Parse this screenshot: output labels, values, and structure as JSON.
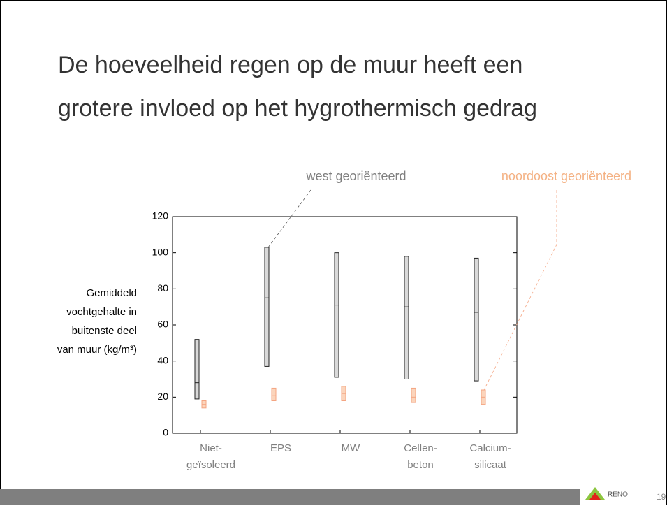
{
  "title_lines": [
    "De hoeveelheid regen op de muur heeft een",
    "grotere invloed op het hygrothermisch gedrag"
  ],
  "page_number": "19",
  "logo_text": "RENO",
  "chart_data": {
    "type": "range",
    "ylabel_lines": [
      "Gemiddeld",
      "vochtgehalte in",
      "buitenste deel",
      "van muur (kg/m³)"
    ],
    "categories": [
      [
        "Niet-",
        "geïsoleerd"
      ],
      [
        "EPS"
      ],
      [
        "MW"
      ],
      [
        "Cellen-",
        "beton"
      ],
      [
        "Calcium-",
        "silicaat"
      ]
    ],
    "ylim": [
      0,
      120
    ],
    "yticks": [
      0,
      20,
      40,
      60,
      80,
      100,
      120
    ],
    "series": [
      {
        "name": "west georiënteerd",
        "color": "#d9d9d9",
        "stroke": "#222222",
        "label_color": "#7f7f7f",
        "low": [
          19,
          37,
          31,
          30,
          29
        ],
        "median": [
          28,
          75,
          71,
          70,
          67
        ],
        "high": [
          52,
          103,
          100,
          98,
          97
        ]
      },
      {
        "name": "noordoost georiënteerd",
        "color": "#fbd5bc",
        "stroke": "#f4a582",
        "label_color": "#f4b183",
        "low": [
          14,
          18,
          18,
          17,
          16
        ],
        "median": [
          16,
          21,
          22,
          20,
          20
        ],
        "high": [
          18,
          25,
          26,
          25,
          24
        ]
      }
    ]
  }
}
